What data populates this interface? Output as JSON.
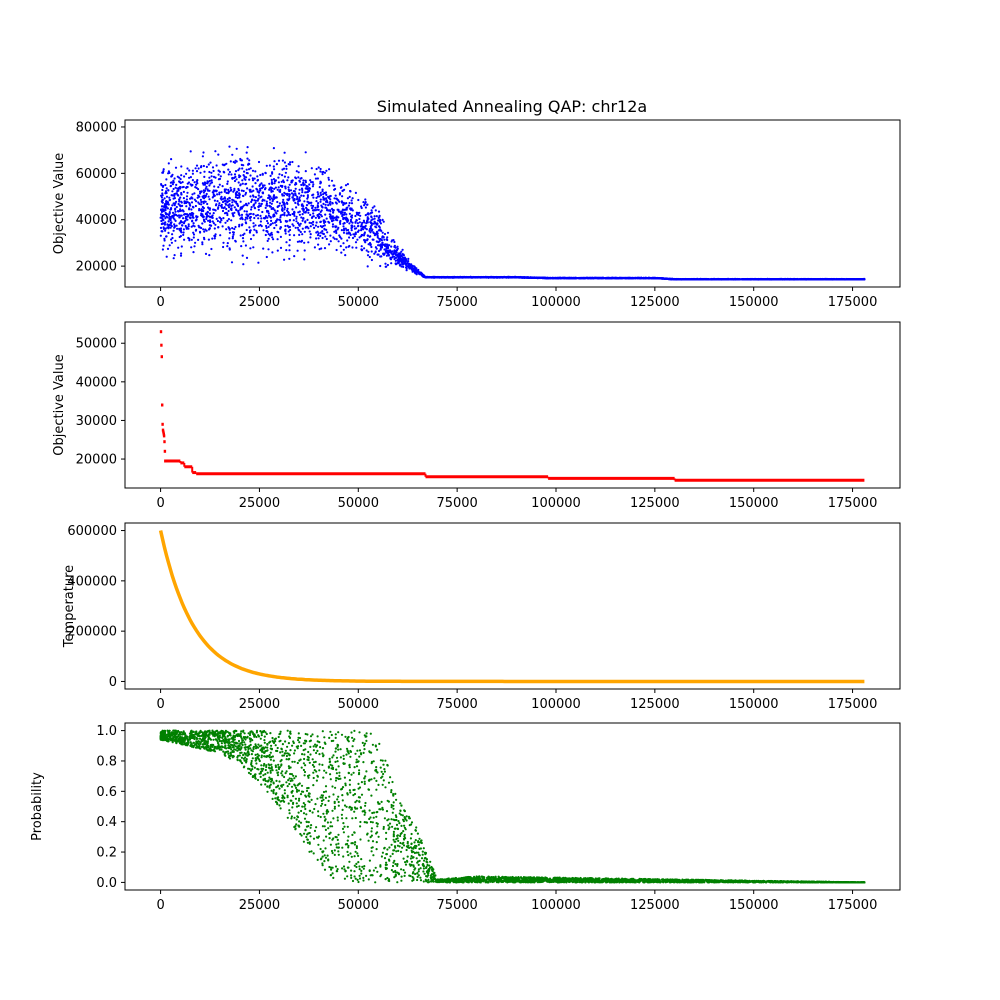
{
  "figure": {
    "title": "Simulated Annealing QAP: chr12a"
  },
  "chart_data": [
    {
      "type": "scatter",
      "title": "Simulated Annealing QAP: chr12a",
      "xlabel": "",
      "ylabel": "Objective Value",
      "xlim": [
        -9000,
        187000
      ],
      "ylim": [
        11000,
        83000
      ],
      "xticks": [
        0,
        25000,
        50000,
        75000,
        100000,
        125000,
        150000,
        175000
      ],
      "xtick_labels": [
        "0",
        "25000",
        "50000",
        "75000",
        "100000",
        "125000",
        "150000",
        "175000"
      ],
      "yticks": [
        20000,
        40000,
        60000,
        80000
      ],
      "ytick_labels": [
        "20000",
        "40000",
        "60000",
        "80000"
      ],
      "color": "#0000ff",
      "grid": false,
      "legend": "none",
      "x": [
        0,
        2000,
        5000,
        10000,
        15000,
        20000,
        25000,
        30000,
        35000,
        40000,
        45000,
        48000,
        50000,
        52000,
        54000,
        56000,
        58000,
        60000,
        62000,
        64000,
        67000,
        75000,
        90000,
        98000,
        110000,
        125000,
        130000,
        150000,
        178000
      ],
      "y_low": [
        20000,
        19000,
        18500,
        18000,
        18000,
        17500,
        18000,
        18000,
        18500,
        19000,
        19000,
        18500,
        18500,
        18500,
        18000,
        18000,
        18000,
        18000,
        17500,
        16500,
        15000,
        15000,
        15000,
        14700,
        14700,
        14700,
        14200,
        14200,
        14200
      ],
      "y_high": [
        66000,
        70000,
        72000,
        74000,
        76000,
        77000,
        78000,
        76000,
        73000,
        70000,
        64000,
        60000,
        57000,
        55000,
        52000,
        45000,
        35000,
        30000,
        26000,
        21000,
        15400,
        15400,
        15400,
        15000,
        15000,
        15000,
        14500,
        14500,
        14500
      ]
    },
    {
      "type": "scatter",
      "title": "",
      "xlabel": "",
      "ylabel": "Objective Value",
      "xlim": [
        -9000,
        187000
      ],
      "ylim": [
        12500,
        55500
      ],
      "xticks": [
        0,
        25000,
        50000,
        75000,
        100000,
        125000,
        150000,
        175000
      ],
      "xtick_labels": [
        "0",
        "25000",
        "50000",
        "75000",
        "100000",
        "125000",
        "150000",
        "175000"
      ],
      "yticks": [
        20000,
        30000,
        40000,
        50000
      ],
      "ytick_labels": [
        "20000",
        "30000",
        "40000",
        "50000"
      ],
      "color": "#ff0000",
      "grid": false,
      "legend": "none",
      "early_points": {
        "x": [
          100,
          200,
          300,
          400,
          500,
          600,
          700,
          800,
          900,
          1000,
          1100,
          1200
        ],
        "y": [
          53000,
          49500,
          46500,
          34000,
          29000,
          27500,
          27000,
          26500,
          26000,
          24500,
          22000,
          19500
        ]
      },
      "steps": {
        "x": [
          1200,
          5000,
          6000,
          8000,
          9000,
          67000,
          98000,
          130000,
          178000
        ],
        "y": [
          19500,
          19000,
          18000,
          16500,
          16200,
          15400,
          15000,
          14500,
          14500
        ]
      }
    },
    {
      "type": "line",
      "title": "",
      "xlabel": "",
      "ylabel": "Temperature",
      "xlim": [
        -9000,
        187000
      ],
      "ylim": [
        -30000,
        630000
      ],
      "xticks": [
        0,
        25000,
        50000,
        75000,
        100000,
        125000,
        150000,
        175000
      ],
      "xtick_labels": [
        "0",
        "25000",
        "50000",
        "75000",
        "100000",
        "125000",
        "150000",
        "175000"
      ],
      "yticks": [
        0,
        200000,
        400000,
        600000
      ],
      "ytick_labels": [
        "0",
        "200000",
        "400000",
        "600000"
      ],
      "color": "#ffa500",
      "grid": false,
      "legend": "none",
      "initial": 600000,
      "decay_per_iteration": 0.00012,
      "x_range": [
        0,
        178000
      ]
    },
    {
      "type": "scatter",
      "title": "",
      "xlabel": "",
      "ylabel": "Probability",
      "xlim": [
        -9000,
        187000
      ],
      "ylim": [
        -0.05,
        1.05
      ],
      "xticks": [
        0,
        25000,
        50000,
        75000,
        100000,
        125000,
        150000,
        175000
      ],
      "xtick_labels": [
        "0",
        "25000",
        "50000",
        "75000",
        "100000",
        "125000",
        "150000",
        "175000"
      ],
      "yticks": [
        0.0,
        0.2,
        0.4,
        0.6,
        0.8,
        1.0
      ],
      "ytick_labels": [
        "0.0",
        "0.2",
        "0.4",
        "0.6",
        "0.8",
        "1.0"
      ],
      "color": "#008000",
      "grid": false,
      "legend": "none",
      "x": [
        0,
        5000,
        10000,
        15000,
        20000,
        25000,
        30000,
        35000,
        40000,
        45000,
        50000,
        55000,
        60000,
        65000,
        70000,
        80000,
        178000
      ],
      "y_low": [
        0.94,
        0.91,
        0.88,
        0.85,
        0.78,
        0.65,
        0.5,
        0.3,
        0.1,
        0.0,
        0.0,
        0.0,
        0.0,
        0.0,
        0.0,
        0.0,
        0.0
      ],
      "y_high": [
        1.0,
        1.0,
        1.0,
        1.0,
        1.0,
        1.0,
        1.0,
        1.0,
        1.0,
        1.0,
        1.0,
        1.0,
        0.55,
        0.35,
        0.02,
        0.04,
        0.0
      ]
    }
  ]
}
